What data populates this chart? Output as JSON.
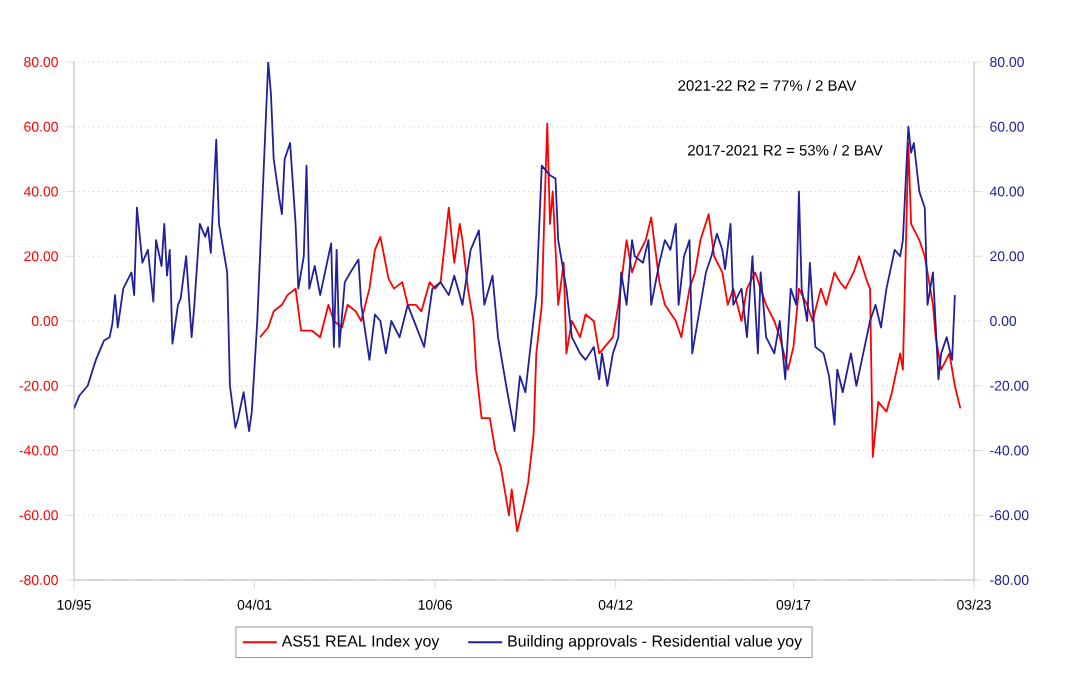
{
  "chart_data": {
    "type": "line",
    "annotations": [
      "2021-22 R2 = 77% / 2 BAV",
      "2017-2021 R2 = 53% / 2 BAV"
    ],
    "xlim": [
      "1995-10",
      "2023-03"
    ],
    "xticks": [
      {
        "value": "1995-10",
        "label": "10/95"
      },
      {
        "value": "2001-04",
        "label": "04/01"
      },
      {
        "value": "2006-10",
        "label": "10/06"
      },
      {
        "value": "2012-04",
        "label": "04/12"
      },
      {
        "value": "2017-09",
        "label": "09/17"
      },
      {
        "value": "2023-03",
        "label": "03/23"
      }
    ],
    "ylim": [
      -80,
      80
    ],
    "yticks": [
      {
        "value": -80,
        "label": "-80.00"
      },
      {
        "value": -60,
        "label": "-60.00"
      },
      {
        "value": -40,
        "label": "-40.00"
      },
      {
        "value": -20,
        "label": "-20.00"
      },
      {
        "value": 0,
        "label": "0.00"
      },
      {
        "value": 20,
        "label": "20.00"
      },
      {
        "value": 40,
        "label": "40.00"
      },
      {
        "value": 60,
        "label": "60.00"
      },
      {
        "value": 80,
        "label": "80.00"
      }
    ],
    "y2lim": [
      -80,
      80
    ],
    "y2ticks": [
      {
        "value": -80,
        "label": "-80.00"
      },
      {
        "value": -60,
        "label": "-60.00"
      },
      {
        "value": -40,
        "label": "-40.00"
      },
      {
        "value": -20,
        "label": "-20.00"
      },
      {
        "value": 0,
        "label": "0.00"
      },
      {
        "value": 20,
        "label": "20.00"
      },
      {
        "value": 40,
        "label": "40.00"
      },
      {
        "value": 60,
        "label": "60.00"
      },
      {
        "value": 80,
        "label": "80.00"
      }
    ],
    "grid": "y",
    "legend": "bottom",
    "series": [
      {
        "name": "AS51 REAL Index yoy",
        "color": "#ff0000",
        "x": [
          "2001-06",
          "2001-09",
          "2001-11",
          "2002-02",
          "2002-04",
          "2002-07",
          "2002-09",
          "2003-01",
          "2003-04",
          "2003-07",
          "2003-09",
          "2003-12",
          "2004-02",
          "2004-05",
          "2004-07",
          "2004-10",
          "2004-12",
          "2005-02",
          "2005-05",
          "2005-07",
          "2005-10",
          "2005-12",
          "2006-03",
          "2006-05",
          "2006-08",
          "2006-10",
          "2006-12",
          "2007-03",
          "2007-05",
          "2007-07",
          "2007-08",
          "2007-10",
          "2007-12",
          "2008-01",
          "2008-03",
          "2008-06",
          "2008-08",
          "2008-10",
          "2009-01",
          "2009-02",
          "2009-04",
          "2009-06",
          "2009-08",
          "2009-10",
          "2009-11",
          "2010-01",
          "2010-02",
          "2010-03",
          "2010-04",
          "2010-05",
          "2010-07",
          "2010-09",
          "2010-10",
          "2010-12",
          "2011-03",
          "2011-05",
          "2011-08",
          "2011-10",
          "2011-12",
          "2012-03",
          "2012-05",
          "2012-08",
          "2012-10",
          "2012-12",
          "2013-03",
          "2013-05",
          "2013-08",
          "2013-10",
          "2014-02",
          "2014-04",
          "2014-07",
          "2014-09",
          "2014-11",
          "2015-02",
          "2015-04",
          "2015-07",
          "2015-09",
          "2015-11",
          "2016-02",
          "2016-04",
          "2016-07",
          "2016-09",
          "2016-11",
          "2017-02",
          "2017-04",
          "2017-07",
          "2017-09",
          "2017-11",
          "2018-02",
          "2018-04",
          "2018-07",
          "2018-09",
          "2018-12",
          "2019-02",
          "2019-04",
          "2019-07",
          "2019-09",
          "2019-12",
          "2020-01",
          "2020-02",
          "2020-04",
          "2020-07",
          "2020-09",
          "2020-12",
          "2021-01",
          "2021-03",
          "2021-04",
          "2021-07",
          "2021-09",
          "2021-12",
          "2022-01",
          "2022-03",
          "2022-06",
          "2022-08",
          "2022-10"
        ],
        "values": [
          -5,
          -2,
          3,
          5,
          8,
          10,
          -3,
          -3,
          -5,
          5,
          0,
          -2,
          5,
          3,
          0,
          10,
          22,
          26,
          13,
          10,
          12,
          5,
          5,
          3,
          12,
          10,
          12,
          35,
          18,
          30,
          25,
          10,
          0,
          -15,
          -30,
          -30,
          -40,
          -45,
          -60,
          -52,
          -65,
          -58,
          -50,
          -35,
          -10,
          5,
          35,
          61,
          30,
          40,
          5,
          18,
          -10,
          0,
          -5,
          2,
          0,
          -10,
          -8,
          -5,
          5,
          25,
          15,
          20,
          25,
          32,
          12,
          5,
          0,
          -5,
          10,
          15,
          25,
          33,
          20,
          15,
          5,
          10,
          0,
          10,
          15,
          10,
          5,
          0,
          -5,
          -15,
          -8,
          10,
          5,
          0,
          10,
          5,
          15,
          12,
          10,
          15,
          20,
          12,
          10,
          -42,
          -25,
          -28,
          -22,
          -10,
          -15,
          55,
          30,
          25,
          20,
          5,
          -5,
          -15,
          -10,
          -20,
          -27
        ]
      },
      {
        "name": "Building approvals - Residential value yoy",
        "color": "#20209a",
        "axis": "y2",
        "x": [
          "1995-10",
          "1995-12",
          "1996-03",
          "1996-06",
          "1996-09",
          "1996-11",
          "1996-12",
          "1997-01",
          "1997-02",
          "1997-04",
          "1997-07",
          "1997-08",
          "1997-09",
          "1997-11",
          "1998-01",
          "1998-03",
          "1998-04",
          "1998-06",
          "1998-07",
          "1998-08",
          "1998-09",
          "1998-10",
          "1998-12",
          "1999-01",
          "1999-03",
          "1999-05",
          "1999-06",
          "1999-08",
          "1999-10",
          "1999-11",
          "1999-12",
          "2000-02",
          "2000-03",
          "2000-06",
          "2000-07",
          "2000-09",
          "2000-10",
          "2000-12",
          "2001-02",
          "2001-03",
          "2001-05",
          "2001-07",
          "2001-09",
          "2001-10",
          "2001-11",
          "2002-01",
          "2002-02",
          "2002-03",
          "2002-05",
          "2002-07",
          "2002-08",
          "2002-10",
          "2002-11",
          "2002-12",
          "2003-02",
          "2003-04",
          "2003-08",
          "2003-09",
          "2003-10",
          "2003-11",
          "2004-01",
          "2004-03",
          "2004-06",
          "2004-07",
          "2004-10",
          "2004-12",
          "2005-02",
          "2005-04",
          "2005-06",
          "2005-09",
          "2005-12",
          "2006-06",
          "2006-09",
          "2006-12",
          "2007-03",
          "2007-05",
          "2007-08",
          "2007-11",
          "2008-02",
          "2008-04",
          "2008-07",
          "2008-09",
          "2008-12",
          "2009-03",
          "2009-05",
          "2009-07",
          "2009-11",
          "2010-01",
          "2010-04",
          "2010-06",
          "2010-07",
          "2010-10",
          "2010-12",
          "2011-03",
          "2011-05",
          "2011-08",
          "2011-10",
          "2011-11",
          "2012-01",
          "2012-03",
          "2012-05",
          "2012-06",
          "2012-08",
          "2012-10",
          "2012-11",
          "2013-02",
          "2013-04",
          "2013-05",
          "2013-08",
          "2013-10",
          "2013-12",
          "2014-02",
          "2014-03",
          "2014-05",
          "2014-07",
          "2014-08",
          "2014-11",
          "2015-01",
          "2015-03",
          "2015-05",
          "2015-07",
          "2015-08",
          "2015-10",
          "2015-11",
          "2016-02",
          "2016-04",
          "2016-06",
          "2016-08",
          "2016-09",
          "2016-11",
          "2017-02",
          "2017-04",
          "2017-06",
          "2017-08",
          "2017-10",
          "2017-11",
          "2017-12",
          "2018-02",
          "2018-03",
          "2018-05",
          "2018-08",
          "2018-10",
          "2018-12",
          "2019-01",
          "2019-03",
          "2019-06",
          "2019-08",
          "2019-10",
          "2020-01",
          "2020-03",
          "2020-05",
          "2020-07",
          "2020-10",
          "2020-12",
          "2021-01",
          "2021-03",
          "2021-04",
          "2021-05",
          "2021-07",
          "2021-09",
          "2021-10",
          "2021-12",
          "2022-02",
          "2022-03",
          "2022-05",
          "2022-07",
          "2022-08"
        ],
        "values": [
          -27,
          -23,
          -20,
          -12,
          -6,
          -5,
          -1,
          8,
          -2,
          10,
          15,
          8,
          35,
          18,
          22,
          6,
          25,
          17,
          30,
          14,
          22,
          -7,
          5,
          7,
          20,
          -5,
          5,
          30,
          26,
          29,
          21,
          56,
          30,
          15,
          -20,
          -33,
          -30,
          -22,
          -34,
          -28,
          0,
          40,
          80,
          70,
          50,
          38,
          33,
          50,
          55,
          30,
          10,
          20,
          48,
          10,
          17,
          8,
          24,
          -8,
          22,
          -8,
          12,
          15,
          19,
          5,
          -12,
          2,
          0,
          -10,
          0,
          -5,
          5,
          -8,
          10,
          12,
          8,
          14,
          5,
          22,
          28,
          5,
          14,
          -5,
          -20,
          -34,
          -17,
          -22,
          8,
          48,
          45,
          44,
          25,
          10,
          -5,
          -10,
          -12,
          -8,
          -18,
          -10,
          -20,
          -10,
          -5,
          15,
          5,
          25,
          20,
          18,
          25,
          5,
          18,
          25,
          22,
          30,
          5,
          20,
          25,
          -10,
          5,
          15,
          20,
          27,
          22,
          16,
          30,
          5,
          10,
          -5,
          20,
          -10,
          15,
          -5,
          -10,
          0,
          -18,
          10,
          5,
          40,
          10,
          0,
          18,
          -8,
          -10,
          -17,
          -32,
          -15,
          -22,
          -10,
          -20,
          -12,
          0,
          5,
          -2,
          10,
          22,
          20,
          25,
          60,
          52,
          55,
          40,
          35,
          5,
          15,
          -18,
          -10,
          -5,
          -12,
          8
        ]
      }
    ]
  }
}
